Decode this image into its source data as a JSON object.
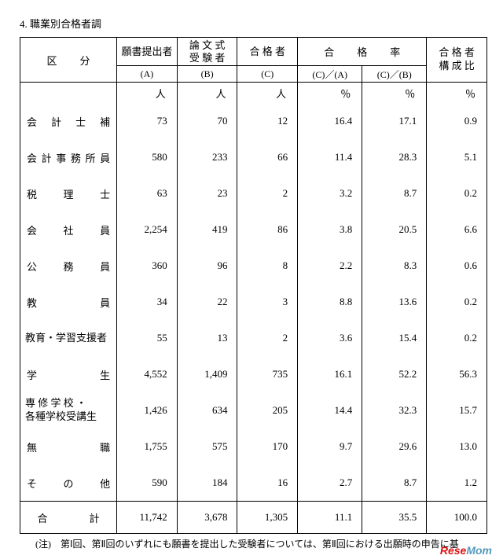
{
  "title": "4. 職業別合格者調",
  "header": {
    "category": "区　分",
    "colA_top": "願書提出者",
    "colA_sub": "(A)",
    "colB_top": "論 文 式\n受 験 者",
    "colB_sub": "(B)",
    "colC_top": "合 格 者",
    "colC_sub": "(C)",
    "rate": "合　格　率",
    "ca": "(C)／(A)",
    "cb": "(C)／(B)",
    "ratio_top": "合 格 者\n構 成 比"
  },
  "units": {
    "person": "人",
    "pct": "％"
  },
  "rows": [
    {
      "cat": "会 計 士 補",
      "justify": true,
      "a": "73",
      "b": "70",
      "c": "12",
      "ca": "16.4",
      "cb": "17.1",
      "r": "0.9"
    },
    {
      "cat": "会計事務所員",
      "justify": true,
      "a": "580",
      "b": "233",
      "c": "66",
      "ca": "11.4",
      "cb": "28.3",
      "r": "5.1"
    },
    {
      "cat": "税　理　士",
      "justify": true,
      "a": "63",
      "b": "23",
      "c": "2",
      "ca": "3.2",
      "cb": "8.7",
      "r": "0.2"
    },
    {
      "cat": "会　社　員",
      "justify": true,
      "a": "2,254",
      "b": "419",
      "c": "86",
      "ca": "3.8",
      "cb": "20.5",
      "r": "6.6"
    },
    {
      "cat": "公　務　員",
      "justify": true,
      "a": "360",
      "b": "96",
      "c": "8",
      "ca": "2.2",
      "cb": "8.3",
      "r": "0.6"
    },
    {
      "cat": "教　　　員",
      "justify": true,
      "a": "34",
      "b": "22",
      "c": "3",
      "ca": "8.8",
      "cb": "13.6",
      "r": "0.2"
    },
    {
      "cat": "教育・学習支援者",
      "justify": false,
      "a": "55",
      "b": "13",
      "c": "2",
      "ca": "3.6",
      "cb": "15.4",
      "r": "0.2"
    },
    {
      "cat": "学　　　生",
      "justify": true,
      "a": "4,552",
      "b": "1,409",
      "c": "735",
      "ca": "16.1",
      "cb": "52.2",
      "r": "56.3"
    },
    {
      "cat": "専 修 学 校 ・\n各種学校受講生",
      "justify": false,
      "a": "1,426",
      "b": "634",
      "c": "205",
      "ca": "14.4",
      "cb": "32.3",
      "r": "15.7"
    },
    {
      "cat": "無　　　職",
      "justify": true,
      "a": "1,755",
      "b": "575",
      "c": "170",
      "ca": "9.7",
      "cb": "29.6",
      "r": "13.0"
    },
    {
      "cat": "そ　の　他",
      "justify": true,
      "a": "590",
      "b": "184",
      "c": "16",
      "ca": "2.7",
      "cb": "8.7",
      "r": "1.2"
    }
  ],
  "total": {
    "label": "合　計",
    "a": "11,742",
    "b": "3,678",
    "c": "1,305",
    "ca": "11.1",
    "cb": "35.5",
    "r": "100.0"
  },
  "note": "(注)　第Ⅰ回、第Ⅱ回のいずれにも願書を提出した受験者については、第Ⅱ回における出願時の申告に基",
  "watermark": {
    "r": "Rese",
    "m": "Mom"
  }
}
